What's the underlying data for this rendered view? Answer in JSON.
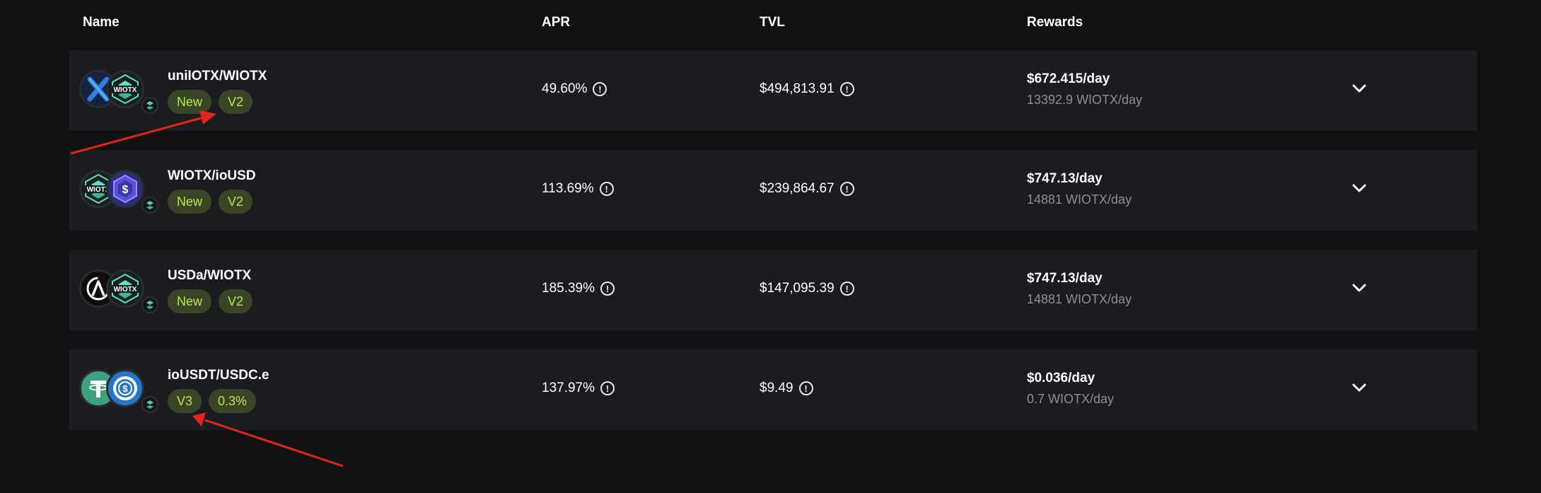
{
  "header": {
    "name": "Name",
    "apr": "APR",
    "tvl": "TVL",
    "rewards": "Rewards"
  },
  "colors": {
    "background": "#111113",
    "row_background": "#1b1c20",
    "badge_background": "#3a4528",
    "badge_text": "#b4e64c",
    "muted_text": "#8d8e94",
    "annotation_arrow": "#e3241b"
  },
  "rows": [
    {
      "pair": "uniIOTX/WIOTX",
      "tokens": [
        "uniiotx-icon",
        "wiotx-icon"
      ],
      "badges": [
        "New",
        "V2"
      ],
      "apr": "49.60%",
      "tvl": "$494,813.91",
      "reward_usd": "$672.415/day",
      "reward_token": "13392.9 WIOTX/day"
    },
    {
      "pair": "WIOTX/ioUSD",
      "tokens": [
        "wiotx-icon",
        "iousd-icon"
      ],
      "badges": [
        "New",
        "V2"
      ],
      "apr": "113.69%",
      "tvl": "$239,864.67",
      "reward_usd": "$747.13/day",
      "reward_token": "14881 WIOTX/day"
    },
    {
      "pair": "USDa/WIOTX",
      "tokens": [
        "usda-icon",
        "wiotx-icon"
      ],
      "badges": [
        "New",
        "V2"
      ],
      "apr": "185.39%",
      "tvl": "$147,095.39",
      "reward_usd": "$747.13/day",
      "reward_token": "14881 WIOTX/day"
    },
    {
      "pair": "ioUSDT/USDC.e",
      "tokens": [
        "tether-icon",
        "usdc-icon"
      ],
      "badges": [
        "V3",
        "0.3%"
      ],
      "apr": "137.97%",
      "tvl": "$9.49",
      "reward_usd": "$0.036/day",
      "reward_token": "0.7 WIOTX/day"
    }
  ]
}
